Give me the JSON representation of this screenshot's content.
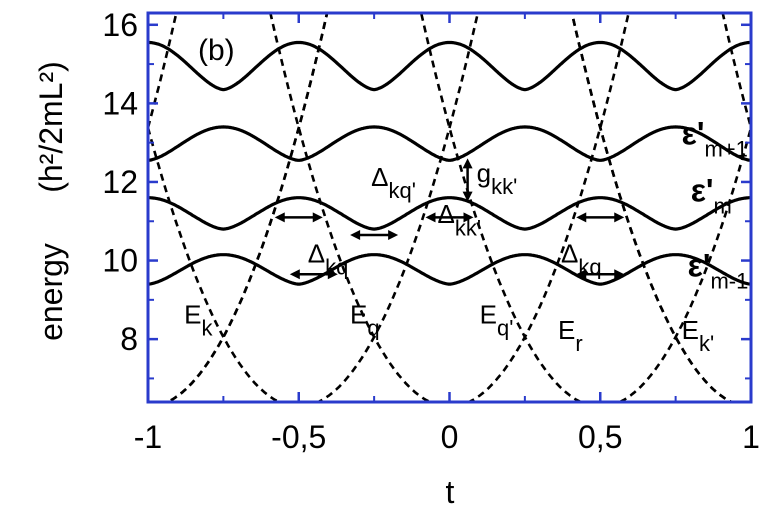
{
  "chart_data": {
    "type": "line",
    "panel_label": "(b)",
    "xlabel": "t",
    "ylabel_main": "energy",
    "ylabel_unit": "(h²/2mL²)",
    "xlim": [
      -1,
      1
    ],
    "ylim": [
      6.4,
      16.3
    ],
    "x_ticks": [
      {
        "v": -1,
        "label": "-1"
      },
      {
        "v": -0.5,
        "label": "-0,5"
      },
      {
        "v": 0,
        "label": "0"
      },
      {
        "v": 0.5,
        "label": "0,5"
      },
      {
        "v": 1,
        "label": "1"
      }
    ],
    "y_ticks": [
      {
        "v": 8,
        "label": "8"
      },
      {
        "v": 10,
        "label": "10"
      },
      {
        "v": 12,
        "label": "12"
      },
      {
        "v": 14,
        "label": "14"
      },
      {
        "v": 16,
        "label": "16"
      }
    ],
    "dashed_parabolas": [
      {
        "name": "E_k",
        "center": -1.0
      },
      {
        "name": "E_q",
        "center": -0.5
      },
      {
        "name": "E_q'",
        "center": 0.0
      },
      {
        "name": "E_r",
        "center": 0.5
      },
      {
        "name": "E_k'",
        "center": 1.0
      }
    ],
    "parabola_model": {
      "a": 28.4,
      "c": 6.28,
      "period": 0.5
    },
    "bands": [
      {
        "name": "ε'_{m-1}",
        "min": 9.4,
        "max": 10.15,
        "min_at": [
          -0.5,
          0,
          0.5
        ]
      },
      {
        "name": "ε'_m",
        "min": 10.8,
        "max": 11.6,
        "min_at": [
          -0.75,
          -0.25,
          0.25,
          0.75
        ]
      },
      {
        "name": "ε'_{m+1}",
        "min": 12.55,
        "max": 13.4,
        "min_at": [
          -1,
          -0.5,
          0,
          0.5,
          1
        ]
      },
      {
        "name": "",
        "min": 14.35,
        "max": 15.55,
        "min_at": [
          -0.75,
          -0.25,
          0.25,
          0.75
        ]
      }
    ],
    "annotations": [
      {
        "main": "Δ",
        "sub": "kq",
        "x": -0.47,
        "y": 9.95
      },
      {
        "main": "Δ",
        "sub": "kq'",
        "x": -0.26,
        "y": 11.9
      },
      {
        "main": "Δ",
        "sub": "kk'",
        "x": -0.04,
        "y": 10.95
      },
      {
        "main": "g",
        "sub": "kk'",
        "x": 0.09,
        "y": 12.0
      },
      {
        "main": "Δ",
        "sub": "kq",
        "x": 0.37,
        "y": 9.95
      },
      {
        "main": "E",
        "sub": "k",
        "x": -0.88,
        "y": 8.4
      },
      {
        "main": "E",
        "sub": "q",
        "x": -0.33,
        "y": 8.4
      },
      {
        "main": "E",
        "sub": "q'",
        "x": 0.1,
        "y": 8.4
      },
      {
        "main": "E",
        "sub": "r",
        "x": 0.36,
        "y": 8.0
      },
      {
        "main": "E",
        "sub": "k'",
        "x": 0.77,
        "y": 8.0
      }
    ],
    "band_labels": [
      {
        "main": "ε'",
        "sub": "m+1",
        "x": 0.77,
        "y": 12.95
      },
      {
        "main": "ε'",
        "sub": "m",
        "x": 0.8,
        "y": 11.5
      },
      {
        "main": "ε'",
        "sub": "m-1",
        "x": 0.79,
        "y": 9.6
      }
    ],
    "gap_arrows": [
      {
        "x": -0.5,
        "y": 11.1
      },
      {
        "x": -0.25,
        "y": 10.65
      },
      {
        "x": 0.0,
        "y": 11.1
      },
      {
        "x": 0.5,
        "y": 11.1
      },
      {
        "x": -0.45,
        "y": 9.65
      },
      {
        "x": 0.5,
        "y": 9.65
      }
    ],
    "g_arrow": {
      "x": 0.06,
      "y1": 11.55,
      "y2": 12.55
    }
  }
}
